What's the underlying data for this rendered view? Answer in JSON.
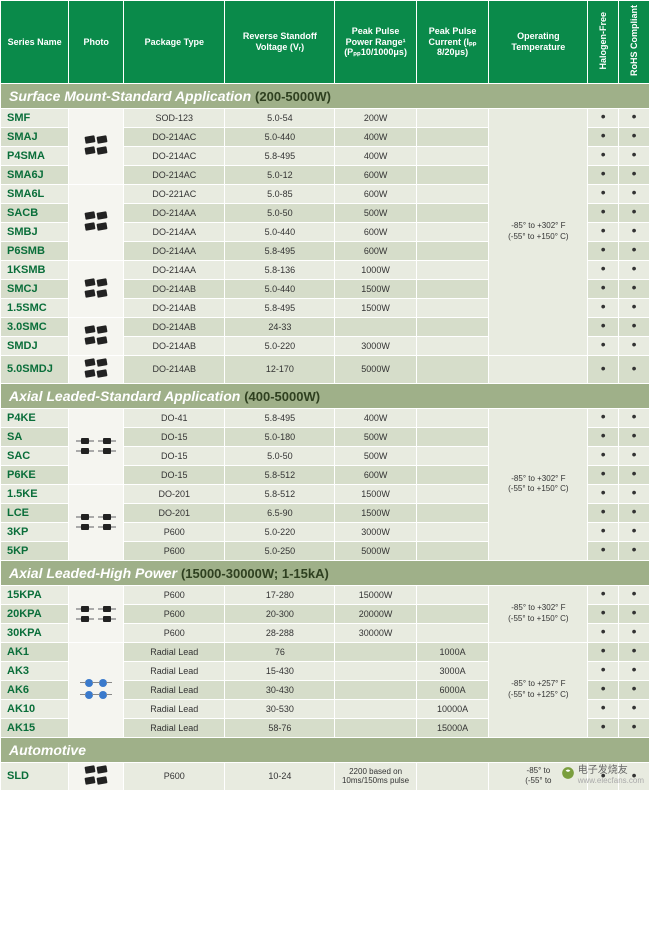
{
  "headers": {
    "series": "Series Name",
    "photo": "Photo",
    "package": "Package Type",
    "voltage": "Reverse Standoff Voltage (Vᵣ)",
    "power": "Peak Pulse Power Range¹ (Pₚₚ10/1000μs)",
    "current": "Peak Pulse Current (Iₚₚ 8/20μs)",
    "temp": "Operating Temperature",
    "halogen": "Halogen-Free",
    "rohs": "RoHS Compliant"
  },
  "col_widths": [
    "62",
    "50",
    "92",
    "100",
    "74",
    "66",
    "90",
    "28",
    "28"
  ],
  "header_bg": "#0a8a4a",
  "section_bg": "#9fb089",
  "row_odd_bg": "#e8ebe0",
  "row_even_bg": "#d6ddca",
  "series_color": "#0a6e3a",
  "sections": [
    {
      "title": "Surface Mount-Standard Application",
      "range": "(200-5000W)",
      "photo_type": "chip",
      "temp_groups": [
        {
          "span": 13,
          "text": "-85° to +302° F\n(-55° to +150° C)"
        }
      ],
      "photo_groups": [
        4,
        4,
        3,
        2
      ],
      "rows": [
        {
          "series": "SMF",
          "pkg": "SOD-123",
          "v": "5.0-54",
          "p": "200W",
          "c": "",
          "h": true,
          "r": true
        },
        {
          "series": "SMAJ",
          "pkg": "DO-214AC",
          "v": "5.0-440",
          "p": "400W",
          "c": "",
          "h": true,
          "r": true
        },
        {
          "series": "P4SMA",
          "pkg": "DO-214AC",
          "v": "5.8-495",
          "p": "400W",
          "c": "",
          "h": true,
          "r": true
        },
        {
          "series": "SMA6J",
          "pkg": "DO-214AC",
          "v": "5.0-12",
          "p": "600W",
          "c": "",
          "h": true,
          "r": true
        },
        {
          "series": "SMA6L",
          "pkg": "DO-221AC",
          "v": "5.0-85",
          "p": "600W",
          "c": "",
          "h": true,
          "r": true
        },
        {
          "series": "SACB",
          "pkg": "DO-214AA",
          "v": "5.0-50",
          "p": "500W",
          "c": "",
          "h": true,
          "r": true
        },
        {
          "series": "SMBJ",
          "pkg": "DO-214AA",
          "v": "5.0-440",
          "p": "600W",
          "c": "",
          "h": true,
          "r": true
        },
        {
          "series": "P6SMB",
          "pkg": "DO-214AA",
          "v": "5.8-495",
          "p": "600W",
          "c": "",
          "h": true,
          "r": true
        },
        {
          "series": "1KSMB",
          "pkg": "DO-214AA",
          "v": "5.8-136",
          "p": "1000W",
          "c": "",
          "h": true,
          "r": true
        },
        {
          "series": "SMCJ",
          "pkg": "DO-214AB",
          "v": "5.0-440",
          "p": "1500W",
          "c": "",
          "h": true,
          "r": true
        },
        {
          "series": "1.5SMC",
          "pkg": "DO-214AB",
          "v": "5.8-495",
          "p": "1500W",
          "c": "",
          "h": true,
          "r": true
        },
        {
          "series": "3.0SMC",
          "pkg": "DO-214AB",
          "v": "24-33",
          "p": "",
          "c": "",
          "h": true,
          "r": true
        },
        {
          "series": "SMDJ",
          "pkg": "DO-214AB",
          "v": "5.0-220",
          "p": "3000W",
          "c": "",
          "h": true,
          "r": true
        }
      ],
      "trailing": [
        {
          "series": "5.0SMDJ",
          "pkg": "DO-214AB",
          "v": "12-170",
          "p": "5000W",
          "c": "",
          "h": true,
          "r": true
        }
      ]
    },
    {
      "title": "Axial Leaded-Standard Application",
      "range": "(400-5000W)",
      "photo_type": "axial",
      "temp_groups": [
        {
          "span": 8,
          "text": "-85° to +302° F\n(-55° to +150° C)"
        }
      ],
      "photo_groups": [
        4,
        4
      ],
      "rows": [
        {
          "series": "P4KE",
          "pkg": "DO-41",
          "v": "5.8-495",
          "p": "400W",
          "c": "",
          "h": true,
          "r": true
        },
        {
          "series": "SA",
          "pkg": "DO-15",
          "v": "5.0-180",
          "p": "500W",
          "c": "",
          "h": true,
          "r": true
        },
        {
          "series": "SAC",
          "pkg": "DO-15",
          "v": "5.0-50",
          "p": "500W",
          "c": "",
          "h": true,
          "r": true
        },
        {
          "series": "P6KE",
          "pkg": "DO-15",
          "v": "5.8-512",
          "p": "600W",
          "c": "",
          "h": true,
          "r": true
        },
        {
          "series": "1.5KE",
          "pkg": "DO-201",
          "v": "5.8-512",
          "p": "1500W",
          "c": "",
          "h": true,
          "r": true
        },
        {
          "series": "LCE",
          "pkg": "DO-201",
          "v": "6.5-90",
          "p": "1500W",
          "c": "",
          "h": true,
          "r": true
        },
        {
          "series": "3KP",
          "pkg": "P600",
          "v": "5.0-220",
          "p": "3000W",
          "c": "",
          "h": true,
          "r": true
        },
        {
          "series": "5KP",
          "pkg": "P600",
          "v": "5.0-250",
          "p": "5000W",
          "c": "",
          "h": true,
          "r": true
        }
      ],
      "trailing": []
    },
    {
      "title": "Axial Leaded-High Power",
      "range": "(15000-30000W; 1-15kA)",
      "photo_type": "axial",
      "temp_groups": [
        {
          "span": 3,
          "text": "-85° to +302° F\n(-55° to +150° C)"
        },
        {
          "span": 5,
          "text": "-85° to +257° F\n(-55° to +125° C)"
        }
      ],
      "photo_groups": [
        3,
        5
      ],
      "photo_types_override": [
        "axial",
        "radial"
      ],
      "rows": [
        {
          "series": "15KPA",
          "pkg": "P600",
          "v": "17-280",
          "p": "15000W",
          "c": "",
          "h": true,
          "r": true
        },
        {
          "series": "20KPA",
          "pkg": "P600",
          "v": "20-300",
          "p": "20000W",
          "c": "",
          "h": true,
          "r": true
        },
        {
          "series": "30KPA",
          "pkg": "P600",
          "v": "28-288",
          "p": "30000W",
          "c": "",
          "h": true,
          "r": true
        },
        {
          "series": "AK1",
          "pkg": "Radial Lead",
          "v": "76",
          "p": "",
          "c": "1000A",
          "h": true,
          "r": true
        },
        {
          "series": "AK3",
          "pkg": "Radial Lead",
          "v": "15-430",
          "p": "",
          "c": "3000A",
          "h": true,
          "r": true
        },
        {
          "series": "AK6",
          "pkg": "Radial Lead",
          "v": "30-430",
          "p": "",
          "c": "6000A",
          "h": true,
          "r": true
        },
        {
          "series": "AK10",
          "pkg": "Radial Lead",
          "v": "30-530",
          "p": "",
          "c": "10000A",
          "h": true,
          "r": true
        },
        {
          "series": "AK15",
          "pkg": "Radial Lead",
          "v": "58-76",
          "p": "",
          "c": "15000A",
          "h": true,
          "r": true
        }
      ],
      "trailing": []
    },
    {
      "title": "Automotive",
      "range": "",
      "photo_type": "chip",
      "temp_groups": [
        {
          "span": 1,
          "text": "-85° to\n(-55° to"
        }
      ],
      "photo_groups": [
        1
      ],
      "rows": [
        {
          "series": "SLD",
          "pkg": "P600",
          "v": "10-24",
          "p": "2200 based on 10ms/150ms pulse",
          "c": "",
          "h": true,
          "r": true
        }
      ],
      "trailing": []
    }
  ],
  "watermark": {
    "text": "电子发烧友",
    "url": "www.elecfans.com"
  }
}
